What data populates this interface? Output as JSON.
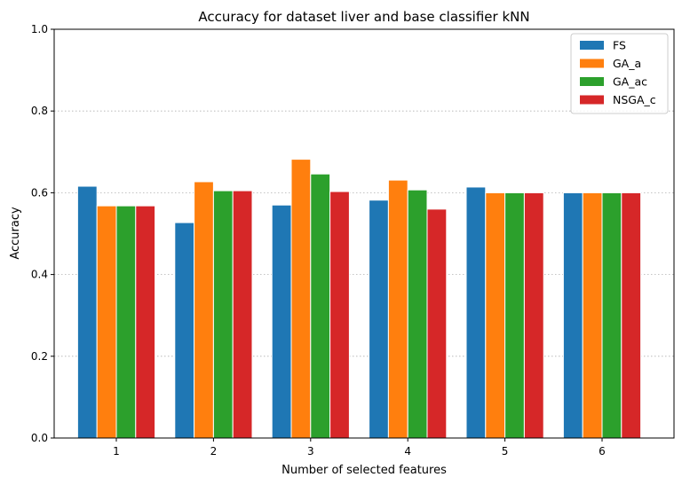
{
  "chart_data": {
    "type": "bar",
    "title": "Accuracy for dataset liver and base classifier kNN",
    "xlabel": "Number of selected features",
    "ylabel": "Accuracy",
    "categories": [
      "1",
      "2",
      "3",
      "4",
      "5",
      "6"
    ],
    "ylim": [
      0.0,
      1.0
    ],
    "yticks": [
      "0.0",
      "0.2",
      "0.4",
      "0.6",
      "0.8",
      "1.0"
    ],
    "grid": "horizontal dotted",
    "legend_position": "top-right",
    "series": [
      {
        "name": "FS",
        "color": "#1f77b4",
        "values": [
          0.616,
          0.527,
          0.57,
          0.582,
          0.614,
          0.6
        ]
      },
      {
        "name": "GA_a",
        "color": "#ff7f0e",
        "values": [
          0.568,
          0.627,
          0.682,
          0.631,
          0.6,
          0.6
        ]
      },
      {
        "name": "GA_ac",
        "color": "#2ca02c",
        "values": [
          0.568,
          0.605,
          0.646,
          0.607,
          0.6,
          0.6
        ]
      },
      {
        "name": "NSGA_c",
        "color": "#d62728",
        "values": [
          0.568,
          0.605,
          0.603,
          0.56,
          0.6,
          0.6
        ]
      }
    ]
  }
}
